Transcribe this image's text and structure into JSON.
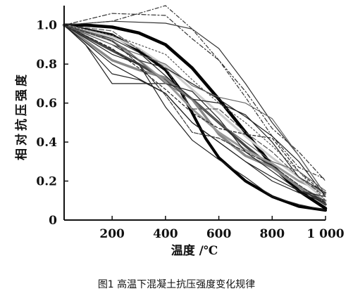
{
  "caption": "图1  高温下混凝土抗压强度变化规律",
  "chart_data": {
    "type": "line",
    "title": "",
    "xlabel": "温度 /℃",
    "ylabel": "相对抗压强度",
    "xlim": [
      20,
      1000
    ],
    "ylim": [
      0,
      1.1
    ],
    "x_ticks": [
      200,
      400,
      600,
      800,
      1000
    ],
    "x_tick_labels": [
      "200",
      "400",
      "600",
      "800",
      "1 000"
    ],
    "y_ticks": [
      0,
      0.2,
      0.4,
      0.6,
      0.8,
      1.0
    ],
    "y_tick_labels": [
      "0",
      "0.2",
      "0.4",
      "0.6",
      "0.8",
      "1.0"
    ],
    "grid": false,
    "legend": "none",
    "series": [
      {
        "style": {
          "color": "#000000",
          "width": 4.5,
          "dash": ""
        },
        "points": [
          [
            20,
            1.0
          ],
          [
            100,
            1.0
          ],
          [
            200,
            0.99
          ],
          [
            300,
            0.96
          ],
          [
            400,
            0.9
          ],
          [
            500,
            0.78
          ],
          [
            600,
            0.62
          ],
          [
            700,
            0.45
          ],
          [
            800,
            0.28
          ],
          [
            900,
            0.15
          ],
          [
            1000,
            0.06
          ]
        ]
      },
      {
        "style": {
          "color": "#000000",
          "width": 4.0,
          "dash": ""
        },
        "points": [
          [
            20,
            1.0
          ],
          [
            200,
            0.95
          ],
          [
            300,
            0.87
          ],
          [
            400,
            0.77
          ],
          [
            450,
            0.68
          ],
          [
            500,
            0.55
          ],
          [
            550,
            0.42
          ],
          [
            600,
            0.32
          ],
          [
            700,
            0.2
          ],
          [
            800,
            0.12
          ],
          [
            900,
            0.07
          ],
          [
            1000,
            0.05
          ]
        ]
      },
      {
        "style": {
          "color": "#444444",
          "width": 3.5,
          "dash": ""
        },
        "points": [
          [
            20,
            1.0
          ],
          [
            200,
            0.87
          ],
          [
            300,
            0.8
          ],
          [
            400,
            0.72
          ],
          [
            500,
            0.62
          ],
          [
            600,
            0.5
          ],
          [
            700,
            0.38
          ],
          [
            800,
            0.27
          ],
          [
            900,
            0.17
          ],
          [
            1000,
            0.08
          ]
        ]
      },
      {
        "style": {
          "color": "#888888",
          "width": 3.5,
          "dash": ""
        },
        "points": [
          [
            20,
            1.0
          ],
          [
            200,
            0.82
          ],
          [
            300,
            0.77
          ],
          [
            400,
            0.73
          ],
          [
            500,
            0.62
          ],
          [
            600,
            0.44
          ],
          [
            700,
            0.33
          ],
          [
            800,
            0.27
          ],
          [
            900,
            0.17
          ],
          [
            1000,
            0.1
          ]
        ]
      },
      {
        "style": {
          "color": "#999999",
          "width": 3.0,
          "dash": ""
        },
        "points": [
          [
            20,
            1.0
          ],
          [
            200,
            0.92
          ],
          [
            300,
            0.82
          ],
          [
            400,
            0.71
          ],
          [
            500,
            0.57
          ],
          [
            600,
            0.45
          ],
          [
            700,
            0.36
          ],
          [
            800,
            0.29
          ],
          [
            900,
            0.2
          ],
          [
            1000,
            0.14
          ]
        ]
      },
      {
        "style": {
          "color": "#cccccc",
          "width": 3.0,
          "dash": ""
        },
        "points": [
          [
            20,
            1.0
          ],
          [
            200,
            0.94
          ],
          [
            300,
            0.88
          ],
          [
            400,
            0.79
          ],
          [
            500,
            0.67
          ],
          [
            600,
            0.55
          ],
          [
            700,
            0.43
          ],
          [
            800,
            0.32
          ],
          [
            900,
            0.22
          ],
          [
            1000,
            0.1
          ]
        ]
      },
      {
        "style": {
          "color": "#333333",
          "width": 1.2,
          "dash": "6 3 2 3"
        },
        "points": [
          [
            20,
            1.0
          ],
          [
            200,
            1.06
          ],
          [
            400,
            1.05
          ],
          [
            500,
            0.93
          ],
          [
            600,
            0.82
          ],
          [
            700,
            0.66
          ],
          [
            800,
            0.47
          ],
          [
            900,
            0.35
          ],
          [
            1000,
            0.2
          ]
        ]
      },
      {
        "style": {
          "color": "#333333",
          "width": 1.2,
          "dash": "5 3 1 3"
        },
        "points": [
          [
            20,
            1.0
          ],
          [
            200,
            1.02
          ],
          [
            400,
            1.1
          ],
          [
            500,
            0.98
          ],
          [
            600,
            0.82
          ],
          [
            700,
            0.63
          ],
          [
            800,
            0.43
          ],
          [
            900,
            0.27
          ],
          [
            1000,
            0.21
          ]
        ]
      },
      {
        "style": {
          "color": "#333333",
          "width": 1.2,
          "dash": ""
        },
        "points": [
          [
            20,
            1.0
          ],
          [
            200,
            1.02
          ],
          [
            400,
            1.01
          ],
          [
            500,
            0.98
          ],
          [
            600,
            0.88
          ],
          [
            700,
            0.7
          ],
          [
            800,
            0.5
          ],
          [
            900,
            0.33
          ],
          [
            1000,
            0.13
          ]
        ]
      },
      {
        "style": {
          "color": "#222222",
          "width": 1.2,
          "dash": ""
        },
        "points": [
          [
            20,
            1.0
          ],
          [
            100,
            0.9
          ],
          [
            200,
            0.7
          ],
          [
            400,
            0.7
          ],
          [
            500,
            0.66
          ],
          [
            600,
            0.52
          ],
          [
            700,
            0.35
          ],
          [
            800,
            0.25
          ],
          [
            900,
            0.15
          ],
          [
            1000,
            0.1
          ]
        ]
      },
      {
        "style": {
          "color": "#222222",
          "width": 1.2,
          "dash": ""
        },
        "points": [
          [
            20,
            1.0
          ],
          [
            200,
            0.8
          ],
          [
            400,
            0.65
          ],
          [
            500,
            0.5
          ],
          [
            600,
            0.4
          ],
          [
            700,
            0.3
          ],
          [
            800,
            0.22
          ],
          [
            900,
            0.15
          ],
          [
            1000,
            0.12
          ]
        ]
      },
      {
        "style": {
          "color": "#222222",
          "width": 1.2,
          "dash": ""
        },
        "points": [
          [
            20,
            1.0
          ],
          [
            200,
            0.85
          ],
          [
            300,
            0.8
          ],
          [
            400,
            0.58
          ],
          [
            500,
            0.41
          ],
          [
            600,
            0.31
          ],
          [
            700,
            0.22
          ],
          [
            800,
            0.12
          ],
          [
            900,
            0.08
          ],
          [
            1000,
            0.05
          ]
        ]
      },
      {
        "style": {
          "color": "#222222",
          "width": 1.2,
          "dash": ""
        },
        "points": [
          [
            20,
            1.0
          ],
          [
            100,
            0.9
          ],
          [
            200,
            0.75
          ],
          [
            300,
            0.72
          ],
          [
            400,
            0.65
          ],
          [
            500,
            0.5
          ],
          [
            600,
            0.4
          ],
          [
            700,
            0.3
          ],
          [
            800,
            0.2
          ],
          [
            900,
            0.14
          ],
          [
            1000,
            0.09
          ]
        ]
      },
      {
        "style": {
          "color": "#222222",
          "width": 1.2,
          "dash": "4 3"
        },
        "points": [
          [
            20,
            1.0
          ],
          [
            200,
            0.88
          ],
          [
            300,
            0.78
          ],
          [
            400,
            0.67
          ],
          [
            500,
            0.55
          ],
          [
            600,
            0.47
          ],
          [
            700,
            0.44
          ],
          [
            800,
            0.42
          ],
          [
            900,
            0.25
          ],
          [
            1000,
            0.13
          ]
        ]
      },
      {
        "style": {
          "color": "#222222",
          "width": 1.2,
          "dash": ""
        },
        "points": [
          [
            20,
            1.0
          ],
          [
            200,
            0.93
          ],
          [
            300,
            0.86
          ],
          [
            400,
            0.74
          ],
          [
            500,
            0.62
          ],
          [
            600,
            0.6
          ],
          [
            700,
            0.54
          ],
          [
            800,
            0.4
          ],
          [
            900,
            0.22
          ],
          [
            1000,
            0.14
          ]
        ]
      },
      {
        "style": {
          "color": "#222222",
          "width": 1.2,
          "dash": ""
        },
        "points": [
          [
            20,
            1.0
          ],
          [
            200,
            0.9
          ],
          [
            300,
            0.82
          ],
          [
            400,
            0.78
          ],
          [
            500,
            0.7
          ],
          [
            600,
            0.62
          ],
          [
            700,
            0.53
          ],
          [
            800,
            0.43
          ],
          [
            900,
            0.3
          ],
          [
            1000,
            0.12
          ]
        ]
      },
      {
        "style": {
          "color": "#555555",
          "width": 1.2,
          "dash": "7 3"
        },
        "points": [
          [
            20,
            1.0
          ],
          [
            200,
            0.97
          ],
          [
            400,
            0.78
          ],
          [
            500,
            0.57
          ],
          [
            600,
            0.57
          ],
          [
            700,
            0.45
          ],
          [
            800,
            0.35
          ],
          [
            900,
            0.22
          ],
          [
            1000,
            0.12
          ]
        ]
      },
      {
        "style": {
          "color": "#555555",
          "width": 1.2,
          "dash": "2 3"
        },
        "points": [
          [
            20,
            1.0
          ],
          [
            200,
            0.95
          ],
          [
            400,
            0.85
          ],
          [
            500,
            0.72
          ],
          [
            600,
            0.6
          ],
          [
            700,
            0.5
          ],
          [
            800,
            0.38
          ],
          [
            900,
            0.25
          ],
          [
            1000,
            0.1
          ]
        ]
      },
      {
        "style": {
          "color": "#666666",
          "width": 1.2,
          "dash": ""
        },
        "points": [
          [
            20,
            1.0
          ],
          [
            200,
            0.9
          ],
          [
            300,
            0.85
          ],
          [
            400,
            0.8
          ],
          [
            500,
            0.69
          ],
          [
            600,
            0.63
          ],
          [
            700,
            0.6
          ],
          [
            800,
            0.52
          ],
          [
            900,
            0.33
          ],
          [
            1000,
            0.13
          ]
        ]
      },
      {
        "style": {
          "color": "#666666",
          "width": 1.2,
          "dash": ""
        },
        "points": [
          [
            20,
            1.0
          ],
          [
            150,
            0.95
          ],
          [
            250,
            0.88
          ],
          [
            400,
            0.7
          ],
          [
            500,
            0.62
          ],
          [
            600,
            0.5
          ],
          [
            700,
            0.4
          ],
          [
            800,
            0.3
          ],
          [
            900,
            0.25
          ],
          [
            1000,
            0.15
          ]
        ]
      },
      {
        "style": {
          "color": "#333333",
          "width": 1.2,
          "dash": "6 2"
        },
        "points": [
          [
            20,
            1.0
          ],
          [
            200,
            0.92
          ],
          [
            300,
            0.8
          ],
          [
            400,
            0.64
          ],
          [
            500,
            0.45
          ],
          [
            600,
            0.42
          ],
          [
            700,
            0.35
          ],
          [
            800,
            0.28
          ],
          [
            900,
            0.18
          ],
          [
            1000,
            0.09
          ]
        ]
      }
    ]
  }
}
